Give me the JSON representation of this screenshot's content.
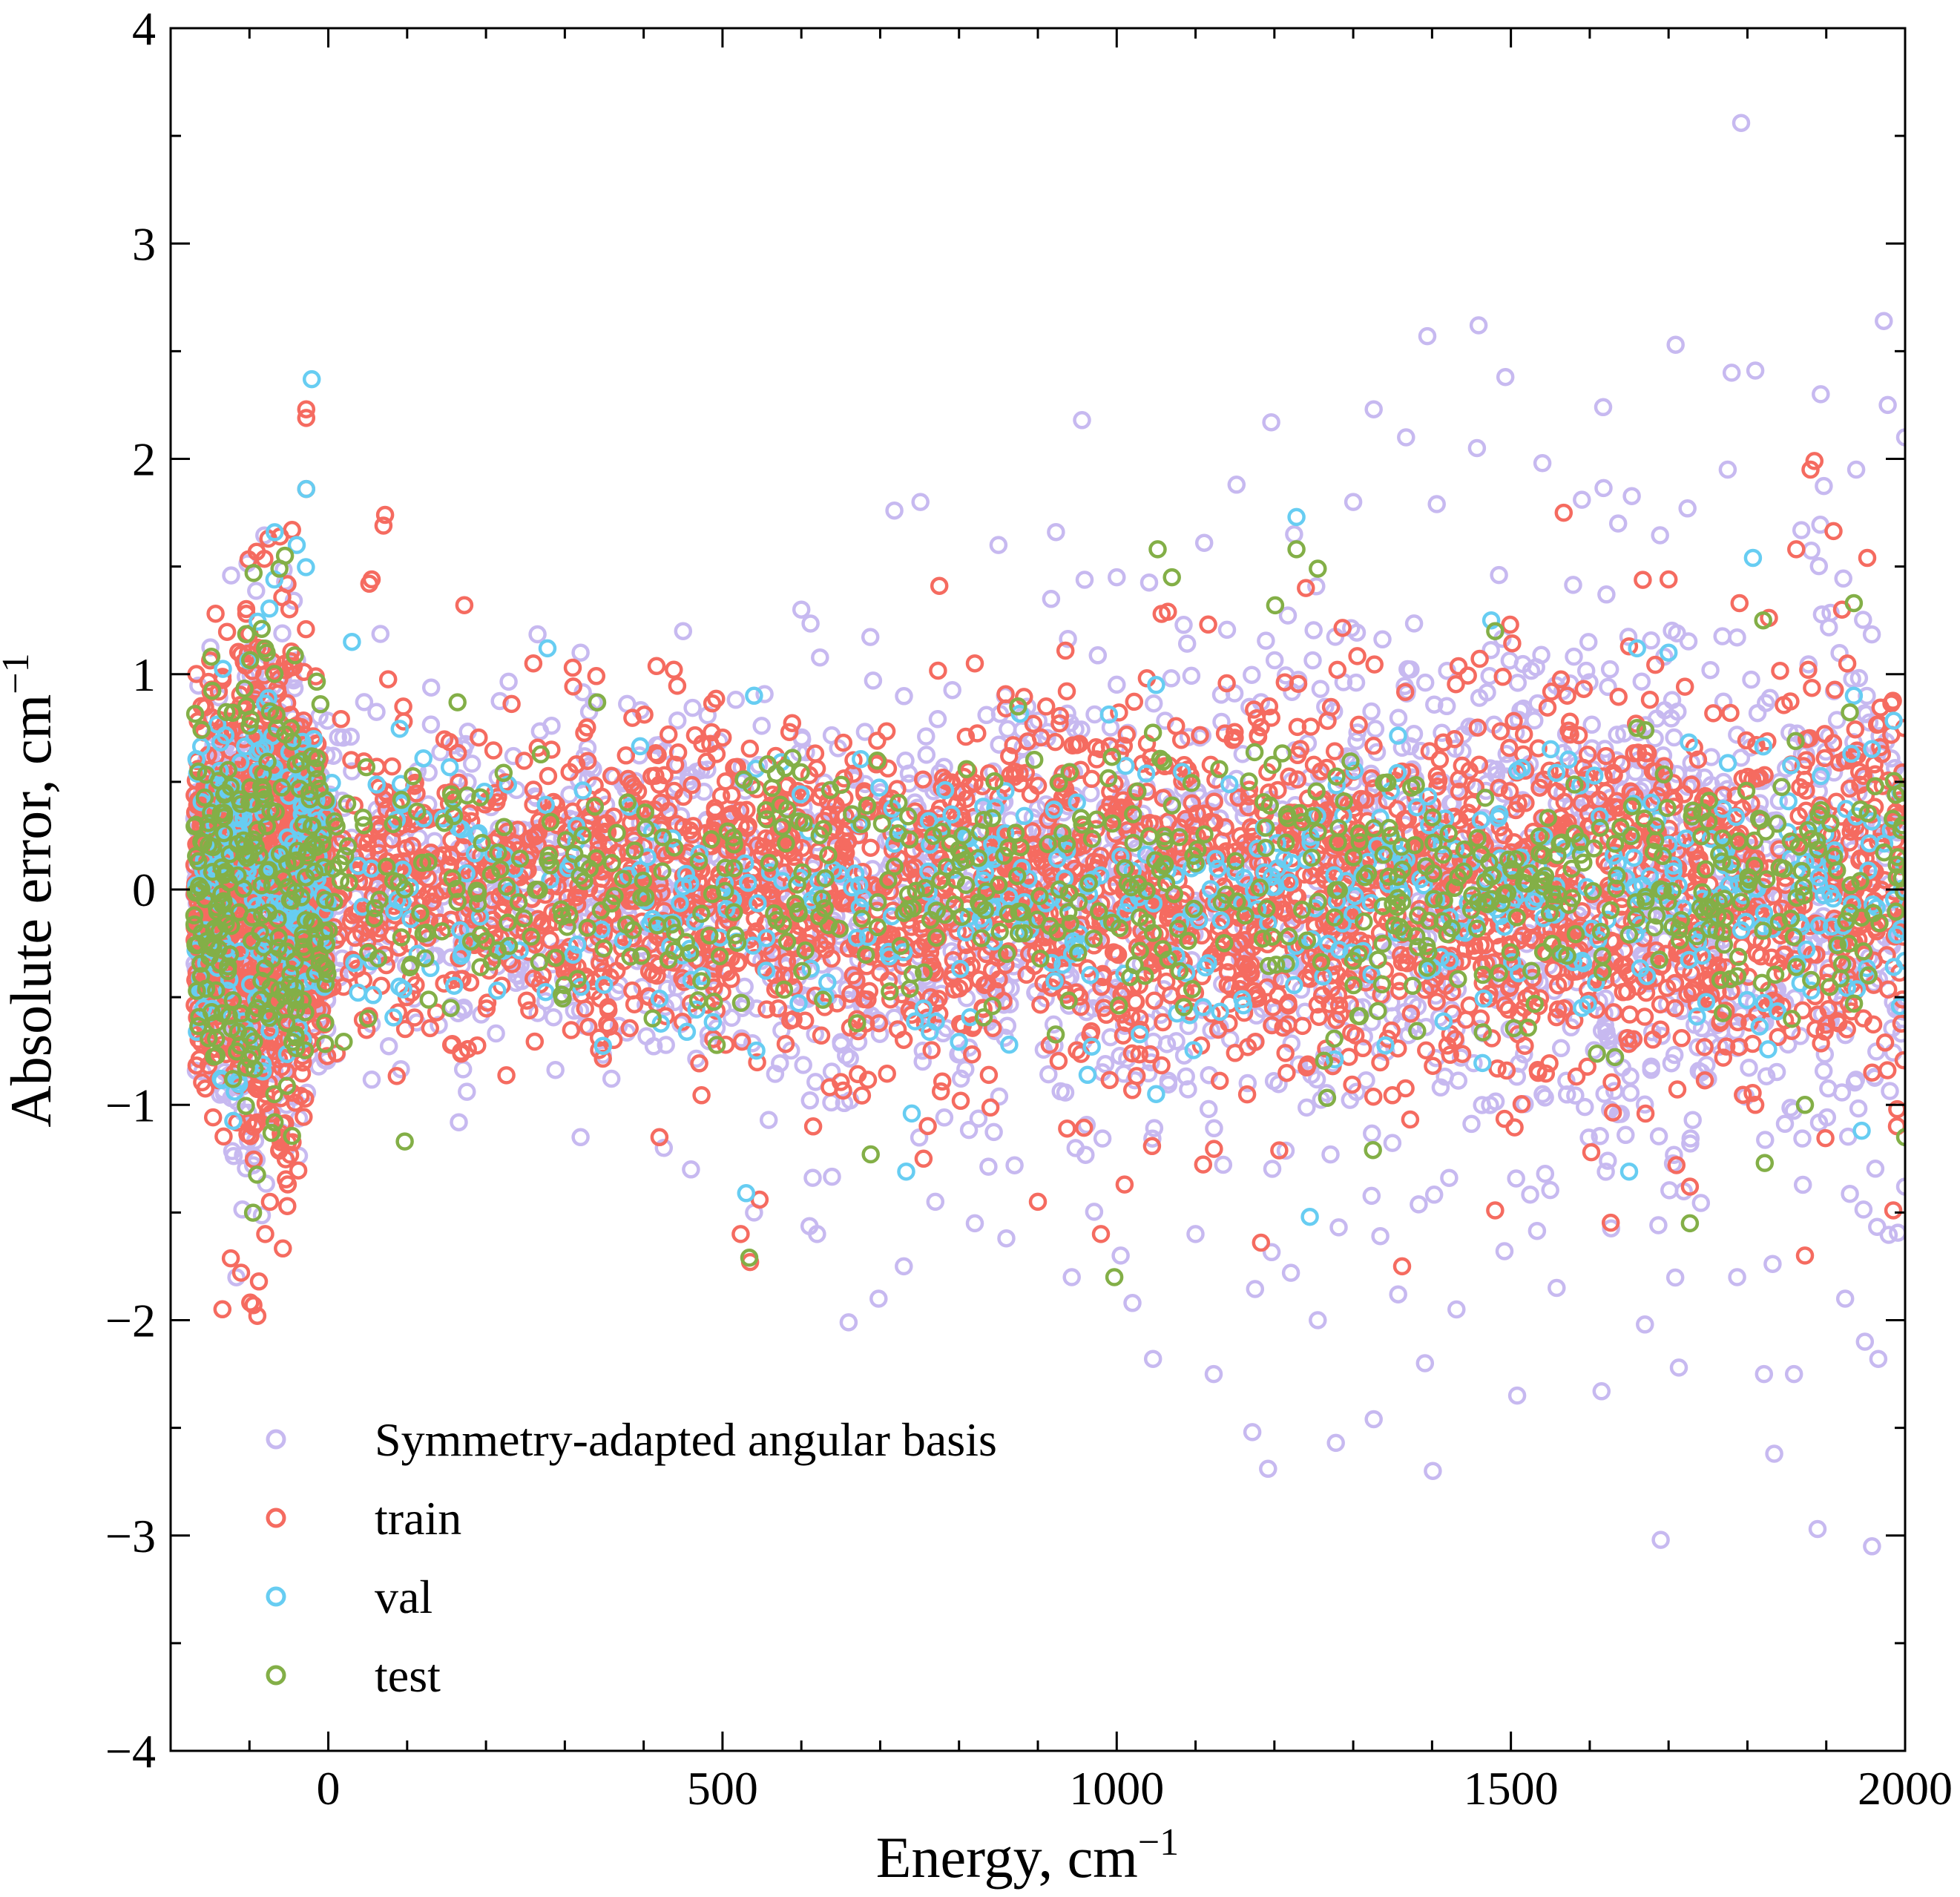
{
  "chart_data": {
    "type": "scatter",
    "title": "",
    "xlabel": "Energy, cm",
    "xlabel_sup": "−1",
    "ylabel": "Absolute error, cm",
    "ylabel_sup": "−1",
    "xlim": [
      -200,
      2000
    ],
    "ylim": [
      -4,
      4
    ],
    "xticks": [
      0,
      500,
      1000,
      1500,
      2000
    ],
    "xtick_labels": [
      "0",
      "500",
      "1000",
      "1500",
      "2000"
    ],
    "yticks": [
      -4,
      -3,
      -2,
      -1,
      0,
      1,
      2,
      3,
      4
    ],
    "ytick_labels": [
      "−4",
      "−3",
      "−2",
      "−1",
      "0",
      "1",
      "2",
      "3",
      "4"
    ],
    "grid": false,
    "legend_position": "bottom-left",
    "series": [
      {
        "name": "Symmetry-adapted angular basis",
        "color": "#c7b9f0",
        "spread_model": {
          "x_start": -170,
          "x_end": 2000,
          "dense_cluster": [
            -170,
            0
          ],
          "sigma_at_start": 0.35,
          "sigma_at_end": 0.7
        },
        "values": [
          [
            1792,
            3.56
          ],
          [
            1459,
            2.62
          ],
          [
            1394,
            2.57
          ],
          [
            1709,
            2.53
          ],
          [
            1973,
            2.64
          ],
          [
            1493,
            2.38
          ],
          [
            1810,
            2.41
          ],
          [
            1780,
            2.4
          ],
          [
            1893,
            2.3
          ],
          [
            1978,
            2.25
          ],
          [
            1326,
            2.23
          ],
          [
            956,
            2.18
          ],
          [
            1196,
            2.17
          ],
          [
            1617,
            2.24
          ],
          [
            1367,
            2.1
          ],
          [
            1457,
            2.05
          ],
          [
            1540,
            1.98
          ],
          [
            1775,
            1.95
          ],
          [
            1938,
            1.95
          ],
          [
            1152,
            1.88
          ],
          [
            751,
            1.8
          ],
          [
            1724,
            1.77
          ],
          [
            718,
            1.76
          ],
          [
            1406,
            1.79
          ],
          [
            923,
            1.66
          ],
          [
            1111,
            1.61
          ],
          [
            1590,
            1.81
          ],
          [
            1636,
            1.7
          ],
          [
            1787,
            -1.8
          ],
          [
            1924,
            -1.9
          ],
          [
            1966,
            -2.18
          ],
          [
            1821,
            -2.25
          ],
          [
            1713,
            -2.22
          ],
          [
            1391,
            -2.2
          ],
          [
            1123,
            -2.25
          ],
          [
            1278,
            -2.57
          ],
          [
            1326,
            -2.46
          ],
          [
            1401,
            -2.7
          ],
          [
            1192,
            -2.69
          ],
          [
            1172,
            -2.52
          ],
          [
            1834,
            -2.62
          ],
          [
            1889,
            -2.97
          ],
          [
            1958,
            -3.05
          ],
          [
            1690,
            -3.02
          ],
          [
            1508,
            -2.35
          ],
          [
            1558,
            -1.85
          ],
          [
            1670,
            -2.02
          ],
          [
            1020,
            -1.92
          ],
          [
            943,
            -1.8
          ],
          [
            860,
            -1.62
          ],
          [
            770,
            -1.45
          ],
          [
            660,
            -2.01
          ],
          [
            698,
            -1.9
          ],
          [
            1046,
            -2.18
          ],
          [
            1100,
            -1.6
          ],
          [
            1221,
            -1.78
          ],
          [
            1255,
            -2.0
          ],
          [
            1357,
            -1.88
          ],
          [
            1431,
            -1.95
          ],
          [
            1615,
            -2.33
          ],
          [
            1859,
            -2.25
          ],
          [
            1949,
            -2.1
          ],
          [
            2000,
            -1.38
          ],
          [
            2000,
            2.1
          ],
          [
            1300,
            1.8
          ],
          [
            1225,
            1.65
          ],
          [
            1000,
            1.45
          ],
          [
            850,
            1.6
          ],
          [
            600,
            1.3
          ],
          [
            450,
            1.2
          ],
          [
            320,
            1.1
          ],
          [
            320,
            -1.15
          ],
          [
            460,
            -1.3
          ],
          [
            540,
            -1.5
          ],
          [
            620,
            -1.6
          ],
          [
            730,
            -1.75
          ],
          [
            820,
            -1.55
          ],
          [
            1005,
            -1.7
          ]
        ]
      },
      {
        "name": "train",
        "color": "#f56b60",
        "spread_model": {
          "x_start": -170,
          "x_end": 2000,
          "dense_cluster": [
            -170,
            0
          ],
          "sigma_at_start": 0.35,
          "sigma_at_end": 0.45
        },
        "values": [
          [
            -28,
            2.23
          ],
          [
            -28,
            2.19
          ],
          [
            -28,
            1.86
          ],
          [
            72,
            1.74
          ],
          [
            70,
            1.69
          ],
          [
            -46,
            1.67
          ],
          [
            55,
            1.44
          ],
          [
            52,
            1.42
          ],
          [
            1885,
            1.99
          ],
          [
            1880,
            1.95
          ],
          [
            1567,
            1.75
          ],
          [
            1862,
            1.58
          ],
          [
            1240,
            1.4
          ],
          [
            1057,
            1.28
          ],
          [
            1065,
            1.29
          ],
          [
            820,
            1.05
          ],
          [
            775,
            1.41
          ],
          [
            -90,
            -1.98
          ],
          [
            -95,
            -1.93
          ],
          [
            -88,
            -1.82
          ],
          [
            -52,
            -1.47
          ],
          [
            -80,
            -1.6
          ],
          [
            1362,
            -1.75
          ],
          [
            1183,
            -1.64
          ],
          [
            1480,
            -1.49
          ],
          [
            1873,
            -1.7
          ],
          [
            1985,
            -1.49
          ],
          [
            1727,
            -1.38
          ],
          [
            1010,
            -1.37
          ],
          [
            980,
            -1.6
          ],
          [
            900,
            -1.45
          ],
          [
            547,
            -1.44
          ],
          [
            523,
            -1.6
          ],
          [
            535,
            -1.73
          ],
          [
            755,
            -1.25
          ],
          [
            615,
            -1.1
          ],
          [
            420,
            -1.15
          ],
          [
            1990,
            -1.02
          ],
          [
            1810,
            -1.0
          ],
          [
            1602,
            -1.22
          ],
          [
            1710,
            -1.28
          ],
          [
            1952,
            1.54
          ],
          [
            1790,
            1.33
          ],
          [
            1700,
            1.44
          ],
          [
            1499,
            1.23
          ],
          [
            1280,
            1.02
          ],
          [
            1920,
            1.3
          ],
          [
            260,
            1.05
          ],
          [
            310,
            1.03
          ]
        ]
      },
      {
        "name": "val",
        "color": "#67cdf2",
        "spread_model": {
          "x_start": -170,
          "x_end": 2000,
          "dense_cluster": [
            -170,
            0
          ],
          "sigma_at_start": 0.35,
          "sigma_at_end": 0.3
        },
        "values": [
          [
            -21,
            2.37
          ],
          [
            -28,
            1.86
          ],
          [
            -40,
            1.6
          ],
          [
            1228,
            1.73
          ],
          [
            1807,
            1.54
          ],
          [
            278,
            1.12
          ],
          [
            30,
            1.15
          ],
          [
            1650,
            -1.31
          ],
          [
            1245,
            -1.52
          ],
          [
            733,
            -1.31
          ],
          [
            530,
            -1.41
          ],
          [
            740,
            -1.04
          ],
          [
            1050,
            -0.95
          ],
          [
            1590,
            -0.55
          ],
          [
            1945,
            -1.12
          ],
          [
            1935,
            0.9
          ],
          [
            1700,
            1.1
          ],
          [
            1660,
            1.12
          ],
          [
            1475,
            1.25
          ],
          [
            1050,
            0.95
          ],
          [
            540,
            0.9
          ]
        ]
      },
      {
        "name": "test",
        "color": "#83af47",
        "spread_model": {
          "x_start": -170,
          "x_end": 2000,
          "dense_cluster": [
            -170,
            0
          ],
          "sigma_at_start": 0.35,
          "sigma_at_end": 0.28
        },
        "values": [
          [
            -55,
            1.55
          ],
          [
            -62,
            1.49
          ],
          [
            1052,
            1.58
          ],
          [
            1228,
            1.58
          ],
          [
            1070,
            1.45
          ],
          [
            1255,
            1.49
          ],
          [
            1201,
            1.32
          ],
          [
            1935,
            1.33
          ],
          [
            1820,
            1.25
          ],
          [
            997,
            -1.8
          ],
          [
            534,
            -1.71
          ],
          [
            97,
            -1.17
          ],
          [
            688,
            -1.23
          ],
          [
            1727,
            -1.55
          ],
          [
            1822,
            -1.27
          ],
          [
            1873,
            -1.0
          ],
          [
            2000,
            -1.15
          ],
          [
            1325,
            -1.21
          ],
          [
            875,
            0.85
          ],
          [
            1480,
            1.2
          ],
          [
            1660,
            0.75
          ]
        ]
      }
    ]
  }
}
